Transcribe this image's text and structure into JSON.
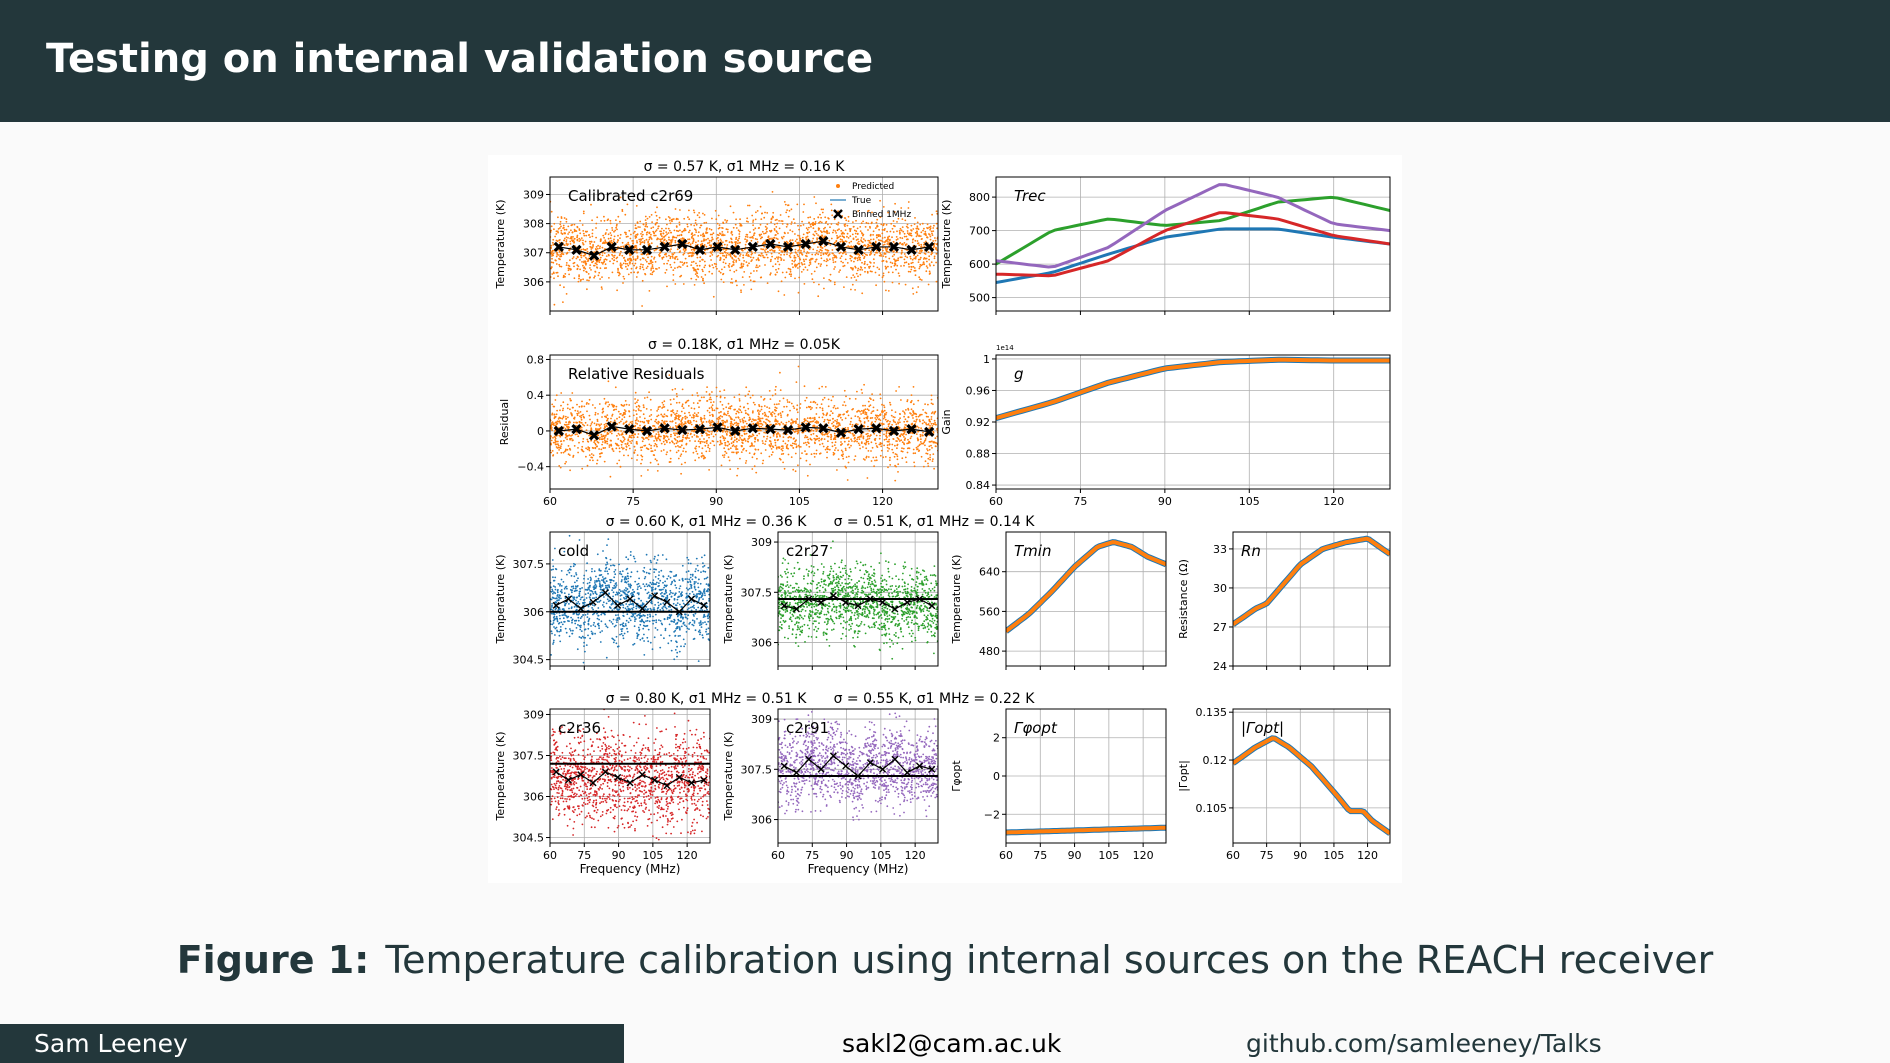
{
  "slide": {
    "title": "Testing on internal validation source",
    "caption_label": "Figure 1:",
    "caption_text": "Temperature calibration using internal sources on the REACH receiver",
    "footer_author": "Sam Leeney",
    "footer_email": "sakl2@cam.ac.uk",
    "footer_url": "github.com/samleeney/Talks"
  },
  "chart_data": [
    {
      "type": "scatter",
      "title": "σ = 0.57 K, σ1 MHz = 0.16 K",
      "annotation": "Calibrated c2r69",
      "ylabel": "Temperature (K)",
      "xlim": [
        60,
        130
      ],
      "ylim": [
        305.0,
        309.6
      ],
      "yticks": [
        306,
        307,
        308,
        309
      ],
      "legend": [
        "Predicted",
        "True",
        "Binned 1MHz"
      ],
      "legend_position": "top-right",
      "series": [
        {
          "name": "Predicted",
          "color": "#ff7f0e",
          "center": 307.1,
          "spread": 0.57
        },
        {
          "name": "Binned 1MHz",
          "color": "#000000",
          "values": [
            307.2,
            307.1,
            306.9,
            307.2,
            307.1,
            307.1,
            307.2,
            307.3,
            307.1,
            307.2,
            307.1,
            307.2,
            307.3,
            307.2,
            307.3,
            307.4,
            307.2,
            307.1,
            307.2,
            307.2,
            307.1,
            307.2
          ]
        }
      ]
    },
    {
      "type": "line",
      "annotation": "Trec",
      "ylabel": "Temperature (K)",
      "xlim": [
        60,
        130
      ],
      "ylim": [
        460,
        860
      ],
      "yticks": [
        500,
        600,
        700,
        800
      ],
      "series": [
        {
          "color": "#1f77b4",
          "x": [
            60,
            70,
            80,
            90,
            100,
            110,
            120,
            130
          ],
          "y": [
            545,
            575,
            630,
            680,
            705,
            705,
            680,
            660
          ]
        },
        {
          "color": "#2ca02c",
          "x": [
            60,
            70,
            80,
            90,
            100,
            110,
            120,
            130
          ],
          "y": [
            600,
            700,
            735,
            715,
            730,
            785,
            800,
            760
          ]
        },
        {
          "color": "#d62728",
          "x": [
            60,
            70,
            80,
            90,
            100,
            110,
            120,
            130
          ],
          "y": [
            570,
            565,
            610,
            700,
            755,
            735,
            685,
            660
          ]
        },
        {
          "color": "#9467bd",
          "x": [
            60,
            70,
            80,
            90,
            100,
            110,
            120,
            130
          ],
          "y": [
            610,
            590,
            650,
            760,
            840,
            800,
            720,
            700
          ]
        }
      ]
    },
    {
      "type": "scatter",
      "title": "σ = 0.18K, σ1 MHz = 0.05K",
      "annotation": "Relative Residuals",
      "ylabel": "Residual",
      "xlim": [
        60,
        130
      ],
      "ylim": [
        -0.65,
        0.85
      ],
      "yticks": [
        -0.4,
        0.0,
        0.4,
        0.8
      ],
      "xticks": [
        60,
        75,
        90,
        105,
        120
      ],
      "series": [
        {
          "name": "Predicted",
          "color": "#ff7f0e",
          "center": 0.0,
          "spread": 0.18
        },
        {
          "name": "Binned 1MHz",
          "color": "#000000",
          "values": [
            0.0,
            0.02,
            -0.05,
            0.05,
            0.02,
            0.0,
            0.03,
            0.01,
            0.02,
            0.04,
            0.0,
            0.03,
            0.02,
            0.01,
            0.04,
            0.03,
            -0.02,
            0.02,
            0.03,
            0.0,
            0.02,
            -0.01
          ]
        }
      ]
    },
    {
      "type": "line",
      "annotation": "g",
      "ylabel": "Gain",
      "scale_label": "1e14",
      "xlim": [
        60,
        130
      ],
      "ylim": [
        0.835,
        1.005
      ],
      "yticks": [
        0.84,
        0.88,
        0.92,
        0.96,
        1.0
      ],
      "xticks": [
        60,
        75,
        90,
        105,
        120
      ],
      "series": [
        {
          "color": "#ff7f0e",
          "x": [
            60,
            70,
            80,
            90,
            100,
            110,
            120,
            130
          ],
          "y": [
            0.925,
            0.945,
            0.97,
            0.988,
            0.996,
            0.999,
            0.998,
            0.998
          ]
        }
      ]
    },
    {
      "type": "scatter",
      "title": "σ = 0.60 K, σ1 MHz = 0.36 K",
      "annotation": "cold",
      "ylabel": "Temperature (K)",
      "xlim": [
        60,
        130
      ],
      "ylim": [
        304.3,
        308.5
      ],
      "yticks": [
        304.5,
        306.0,
        307.5
      ],
      "series": [
        {
          "name": "Predicted",
          "color": "#1f77b4",
          "center": 306.2,
          "spread": 0.6
        },
        {
          "name": "True",
          "color": "#000000",
          "values": [
            306.0
          ]
        },
        {
          "name": "Binned 1MHz",
          "color": "#000000",
          "values": [
            306.2,
            306.4,
            306.1,
            306.3,
            306.6,
            306.2,
            306.4,
            306.1,
            306.5,
            306.3,
            306.0,
            306.4,
            306.2
          ]
        }
      ]
    },
    {
      "type": "scatter",
      "title": "σ = 0.51 K, σ1 MHz = 0.14 K",
      "annotation": "c2r27",
      "ylabel": "Temperature (K)",
      "xlim": [
        60,
        130
      ],
      "ylim": [
        305.3,
        309.3
      ],
      "yticks": [
        306.0,
        307.5,
        309.0
      ],
      "series": [
        {
          "name": "Predicted",
          "color": "#2ca02c",
          "center": 307.2,
          "spread": 0.51
        },
        {
          "name": "True",
          "color": "#000000",
          "values": [
            307.3
          ]
        },
        {
          "name": "Binned 1MHz",
          "color": "#000000",
          "values": [
            307.1,
            307.0,
            307.3,
            307.2,
            307.4,
            307.2,
            307.1,
            307.3,
            307.2,
            307.0,
            307.2,
            307.3,
            307.1
          ]
        }
      ]
    },
    {
      "type": "line",
      "annotation": "Tmin",
      "ylabel": "Temperature (K)",
      "xlim": [
        60,
        130
      ],
      "ylim": [
        450,
        720
      ],
      "yticks": [
        480,
        560,
        640
      ],
      "series": [
        {
          "color": "#ff7f0e",
          "x": [
            60,
            70,
            80,
            90,
            100,
            107,
            115,
            122,
            130
          ],
          "y": [
            520,
            555,
            600,
            650,
            690,
            700,
            690,
            670,
            655
          ]
        }
      ]
    },
    {
      "type": "line",
      "annotation": "Rn",
      "ylabel": "Resistance (Ω)",
      "xlim": [
        60,
        130
      ],
      "ylim": [
        24,
        34.3
      ],
      "yticks": [
        24,
        27,
        30,
        33
      ],
      "series": [
        {
          "color": "#ff7f0e",
          "x": [
            60,
            65,
            70,
            75,
            80,
            90,
            100,
            110,
            120,
            125,
            130
          ],
          "y": [
            27.2,
            27.8,
            28.4,
            28.8,
            29.8,
            31.8,
            33.0,
            33.5,
            33.8,
            33.2,
            32.6
          ]
        }
      ]
    },
    {
      "type": "scatter",
      "title": "σ = 0.80 K, σ1 MHz = 0.51 K",
      "annotation": "c2r36",
      "ylabel": "Temperature (K)",
      "xlabel": "Frequency (MHz)",
      "xlim": [
        60,
        130
      ],
      "ylim": [
        304.3,
        309.2
      ],
      "yticks": [
        304.5,
        306.0,
        307.5,
        309.0
      ],
      "xticks": [
        60,
        75,
        90,
        105,
        120
      ],
      "series": [
        {
          "name": "Predicted",
          "color": "#d62728",
          "center": 306.8,
          "spread": 0.8
        },
        {
          "name": "True",
          "color": "#000000",
          "values": [
            307.2
          ]
        },
        {
          "name": "Binned 1MHz",
          "color": "#000000",
          "values": [
            306.9,
            306.6,
            306.8,
            306.5,
            306.9,
            306.7,
            306.5,
            306.8,
            306.6,
            306.4,
            306.7,
            306.5,
            306.6
          ]
        }
      ]
    },
    {
      "type": "scatter",
      "title": "σ = 0.55 K, σ1 MHz = 0.22 K",
      "annotation": "c2r91",
      "ylabel": "Temperature (K)",
      "xlabel": "Frequency (MHz)",
      "xlim": [
        60,
        130
      ],
      "ylim": [
        305.3,
        309.3
      ],
      "yticks": [
        306.0,
        307.5,
        309.0
      ],
      "xticks": [
        60,
        75,
        90,
        105,
        120
      ],
      "series": [
        {
          "name": "Predicted",
          "color": "#9467bd",
          "center": 307.4,
          "spread": 0.55
        },
        {
          "name": "True",
          "color": "#000000",
          "values": [
            307.3
          ]
        },
        {
          "name": "Binned 1MHz",
          "color": "#000000",
          "values": [
            307.6,
            307.4,
            307.8,
            307.5,
            307.9,
            307.6,
            307.3,
            307.7,
            307.5,
            307.8,
            307.4,
            307.6,
            307.5
          ]
        }
      ]
    },
    {
      "type": "line",
      "annotation": "Γφopt",
      "ylabel": "Γφopt",
      "xlim": [
        60,
        130
      ],
      "ylim": [
        -3.5,
        3.5
      ],
      "yticks": [
        -2,
        0,
        2
      ],
      "xticks": [
        60,
        75,
        90,
        105,
        120
      ],
      "series": [
        {
          "color": "#ff7f0e",
          "x": [
            60,
            130
          ],
          "y": [
            -2.95,
            -2.7
          ]
        }
      ]
    },
    {
      "type": "line",
      "annotation": "|Γopt|",
      "ylabel": "|Γopt|",
      "xlim": [
        60,
        130
      ],
      "ylim": [
        0.094,
        0.136
      ],
      "yticks": [
        0.105,
        0.12,
        0.135
      ],
      "xticks": [
        60,
        75,
        90,
        105,
        120
      ],
      "series": [
        {
          "color": "#ff7f0e",
          "x": [
            60,
            70,
            78,
            85,
            95,
            105,
            112,
            118,
            122,
            130
          ],
          "y": [
            0.119,
            0.124,
            0.127,
            0.124,
            0.118,
            0.11,
            0.104,
            0.104,
            0.101,
            0.097
          ]
        }
      ]
    }
  ]
}
